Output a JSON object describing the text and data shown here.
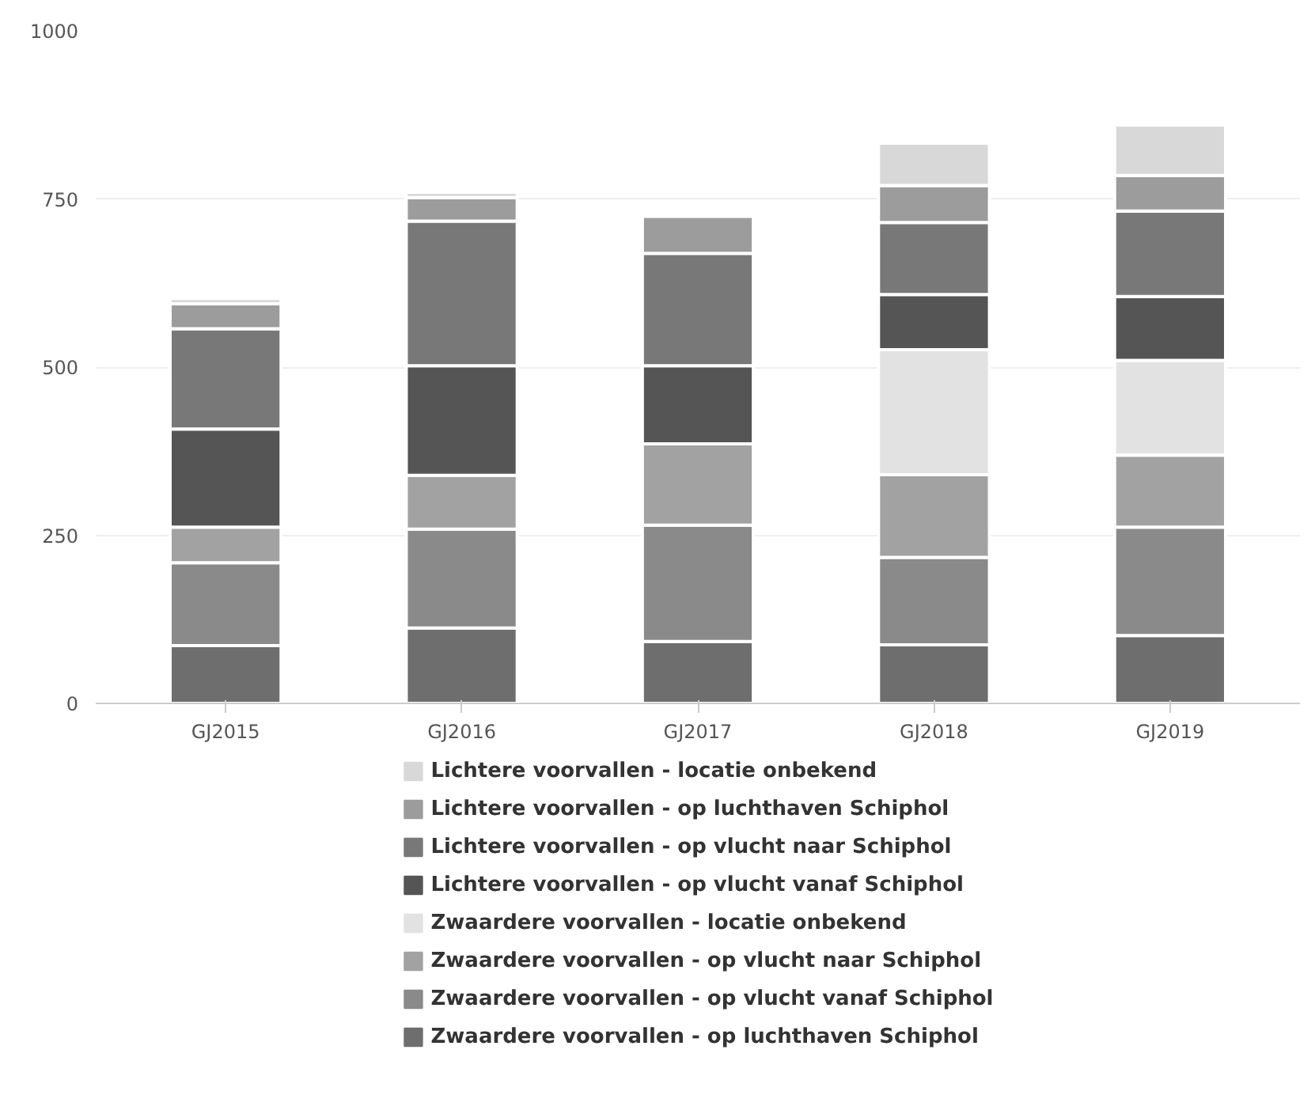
{
  "chart_data": {
    "type": "bar",
    "stacked": true,
    "categories": [
      "GJ2015",
      "GJ2016",
      "GJ2017",
      "GJ2018",
      "GJ2019"
    ],
    "ylim": [
      0,
      1000
    ],
    "yticks": [
      0,
      250,
      500,
      750,
      1000
    ],
    "grid": "y",
    "legend": "bottom",
    "series": [
      {
        "name": "Zwaardere voorvallen - op luchthaven Schiphol",
        "color": "#6e6e6e",
        "values": [
          86,
          112,
          92,
          87,
          101
        ]
      },
      {
        "name": "Zwaardere voorvallen - op vlucht vanaf Schiphol",
        "color": "#8a8a8a",
        "values": [
          123,
          147,
          173,
          130,
          161
        ]
      },
      {
        "name": "Zwaardere voorvallen - op vlucht naar Schiphol",
        "color": "#a2a2a2",
        "values": [
          53,
          80,
          121,
          123,
          107
        ]
      },
      {
        "name": "Zwaardere voorvallen - locatie onbekend",
        "color": "#e2e2e2",
        "values": [
          null,
          null,
          null,
          186,
          141
        ]
      },
      {
        "name": "Lichtere voorvallen - op vlucht vanaf Schiphol",
        "color": "#555555",
        "values": [
          146,
          163,
          116,
          82,
          95
        ]
      },
      {
        "name": "Lichtere voorvallen - op vlucht naar Schiphol",
        "color": "#787878",
        "values": [
          149,
          215,
          167,
          107,
          127
        ]
      },
      {
        "name": "Lichtere voorvallen - op luchthaven Schiphol",
        "color": "#9c9c9c",
        "values": [
          37,
          35,
          55,
          55,
          53
        ]
      },
      {
        "name": "Lichtere voorvallen - locatie onbekend",
        "color": "#d8d8d8",
        "values": [
          8,
          8,
          null,
          63,
          75
        ]
      }
    ]
  }
}
